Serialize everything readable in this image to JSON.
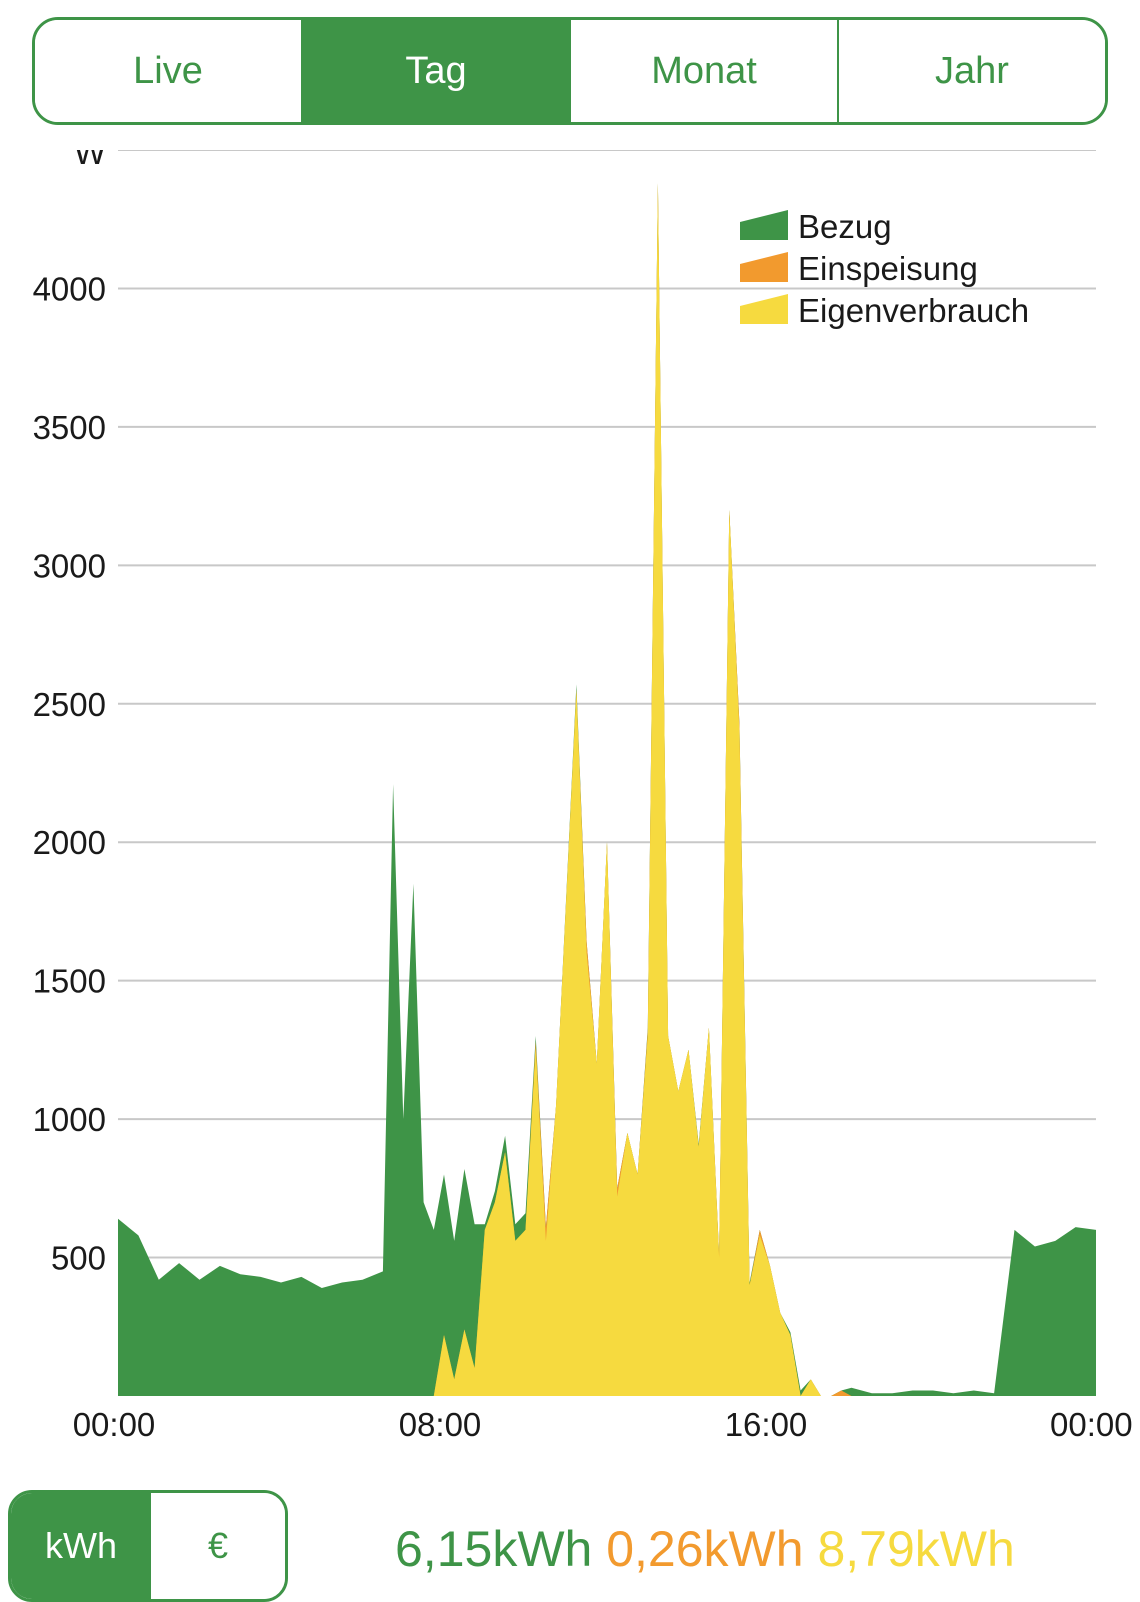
{
  "tabs": [
    {
      "label": "Live",
      "active": false
    },
    {
      "label": "Tag",
      "active": true
    },
    {
      "label": "Monat",
      "active": false
    },
    {
      "label": "Jahr",
      "active": false
    }
  ],
  "units": [
    {
      "label": "kWh",
      "active": true
    },
    {
      "label": "€",
      "active": false
    }
  ],
  "totals": {
    "bezug": "6,15kWh",
    "einspeisung": "0,26kWh",
    "eigenverbrauch": "8,79kWh"
  },
  "colors": {
    "accent": "#3e9447",
    "bezug": "#3e9447",
    "einspeisung": "#f29a2e",
    "eigenverbrauch": "#f6da3f"
  },
  "chart_data": {
    "type": "area",
    "stacked": true,
    "ylabel": "W",
    "yticks": [
      500,
      1000,
      1500,
      2000,
      2500,
      3000,
      3500,
      4000
    ],
    "ylim": [
      0,
      4500
    ],
    "xticks": [
      "00:00",
      "08:00",
      "16:00",
      "00:00"
    ],
    "xlim": [
      0,
      24
    ],
    "grid": true,
    "legend": "top-right",
    "x": [
      0,
      0.5,
      1,
      1.5,
      2,
      2.5,
      3,
      3.5,
      4,
      4.5,
      5,
      5.5,
      6,
      6.5,
      6.75,
      7,
      7.25,
      7.5,
      7.75,
      8,
      8.25,
      8.5,
      8.75,
      9,
      9.25,
      9.5,
      9.75,
      10,
      10.25,
      10.5,
      10.75,
      11,
      11.25,
      11.5,
      11.75,
      12,
      12.25,
      12.5,
      12.75,
      13,
      13.25,
      13.5,
      13.75,
      14,
      14.25,
      14.5,
      14.75,
      15,
      15.25,
      15.5,
      15.75,
      16,
      16.25,
      16.5,
      16.75,
      17,
      17.25,
      17.5,
      17.75,
      18,
      18.5,
      19,
      19.5,
      20,
      20.5,
      21,
      21.5,
      22,
      22.5,
      23,
      23.5,
      24
    ],
    "series": [
      {
        "name": "Bezug",
        "values": [
          640,
          580,
          420,
          480,
          420,
          470,
          440,
          430,
          410,
          430,
          390,
          410,
          420,
          450,
          2210,
          1000,
          1850,
          700,
          600,
          580,
          500,
          580,
          520,
          20,
          40,
          60,
          60,
          60,
          20,
          0,
          0,
          10,
          20,
          0,
          0,
          0,
          0,
          0,
          0,
          10,
          0,
          0,
          0,
          0,
          10,
          0,
          0,
          0,
          0,
          10,
          0,
          0,
          0,
          10,
          20,
          0,
          0,
          0,
          0,
          30,
          10,
          10,
          20,
          20,
          10,
          20,
          10,
          600,
          540,
          560,
          610,
          600
        ]
      },
      {
        "name": "Einspeisung",
        "values": [
          0,
          0,
          0,
          0,
          0,
          0,
          0,
          0,
          0,
          0,
          0,
          0,
          0,
          0,
          0,
          0,
          0,
          0,
          0,
          0,
          0,
          0,
          0,
          0,
          0,
          0,
          0,
          0,
          20,
          50,
          0,
          0,
          0,
          40,
          0,
          0,
          30,
          0,
          0,
          20,
          0,
          0,
          0,
          0,
          0,
          0,
          10,
          0,
          30,
          0,
          20,
          0,
          0,
          0,
          0,
          0,
          0,
          0,
          20,
          0,
          0,
          0,
          0,
          0,
          0,
          0,
          0,
          0,
          0,
          0,
          0,
          0
        ]
      },
      {
        "name": "Eigenverbrauch",
        "values": [
          0,
          0,
          0,
          0,
          0,
          0,
          0,
          0,
          0,
          0,
          0,
          0,
          0,
          0,
          0,
          0,
          0,
          0,
          0,
          220,
          60,
          240,
          100,
          600,
          700,
          880,
          560,
          600,
          1260,
          560,
          1050,
          1800,
          2550,
          1600,
          1200,
          2000,
          720,
          950,
          800,
          1300,
          4380,
          1300,
          1100,
          1250,
          900,
          1330,
          500,
          3200,
          2400,
          400,
          580,
          470,
          300,
          220,
          0,
          60,
          0,
          0,
          0,
          0,
          0,
          0,
          0,
          0,
          0,
          0,
          0,
          0,
          0,
          0,
          0,
          0
        ]
      }
    ]
  }
}
